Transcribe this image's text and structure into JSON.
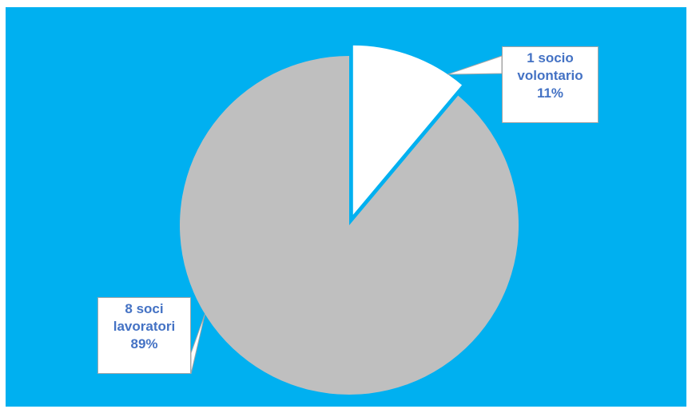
{
  "chart_data": {
    "type": "pie",
    "title": "",
    "slices": [
      {
        "label_lines": [
          "1 socio",
          "volontario",
          "11%"
        ],
        "count": 1,
        "percent": 11,
        "color": "#FFFFFF",
        "exploded": true
      },
      {
        "label_lines": [
          "8  soci",
          "lavoratori",
          "89%"
        ],
        "count": 8,
        "percent": 89,
        "color": "#BFBFBF",
        "exploded": false
      }
    ],
    "background_color": "#00B0F0",
    "label_text_color": "#4472C4"
  }
}
